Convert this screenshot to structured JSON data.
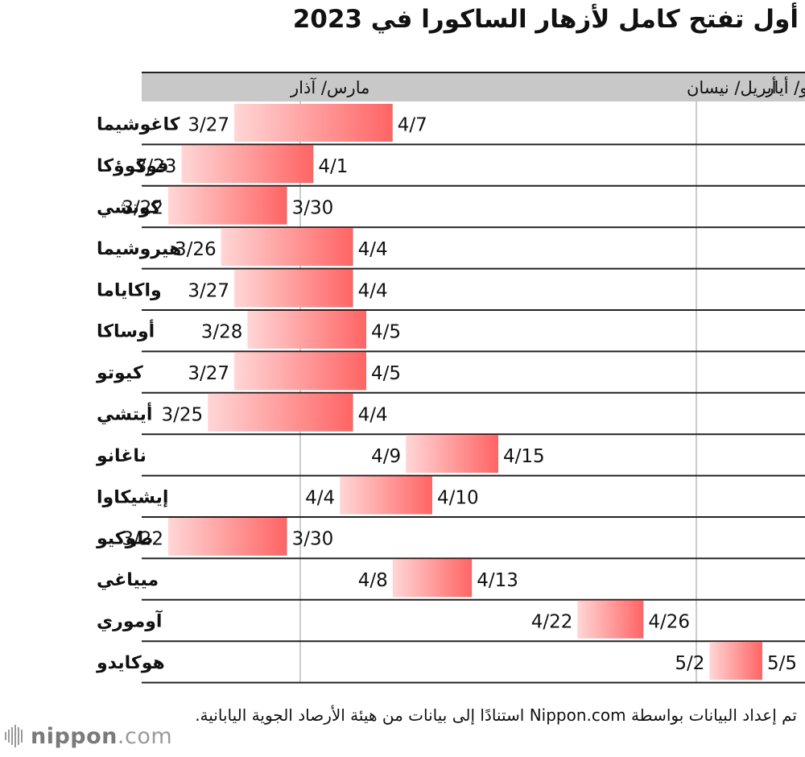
{
  "title": "أول تفتح كامل لأزهار الساكورا في 2023",
  "note": "تم إعداد البيانات بواسطة Nippon.com استنادًا إلى بيانات من هيئة الأرصاد الجوية اليابانية.",
  "logo": {
    "bold": "nippon",
    "dot": ".",
    "rest": "com"
  },
  "colors": {
    "bar_start": "#ffd6d6",
    "bar_end": "#ff6464",
    "header_bg": "#c8c8c8",
    "grid": "#222222",
    "month_line": "#999999"
  },
  "chart_data": {
    "type": "bar",
    "subtype": "floating-range",
    "x_axis": {
      "unit": "date",
      "range": [
        "3/20",
        "5/6"
      ],
      "months": [
        {
          "label": "مارس/ آذار",
          "start": "3/20",
          "end": "3/31"
        },
        {
          "label": "أبريل/ نيسان",
          "start": "4/1",
          "end": "4/30"
        },
        {
          "label": "مايو/ أيار",
          "start": "5/1",
          "end": "5/6"
        }
      ]
    },
    "categories": [
      "كاغوشيما",
      "فوكوؤكا",
      "كوتشي",
      "هيروشيما",
      "واكاياما",
      "أوساكا",
      "كيوتو",
      "أيتشي",
      "ناغانو",
      "إيشيكاوا",
      "طوكيو",
      "ميياغي",
      "آوموري",
      "هوكايدو"
    ],
    "series": [
      {
        "start": [
          "3/27",
          "3/23",
          "3/22",
          "3/26",
          "3/27",
          "3/28",
          "3/27",
          "3/25",
          "4/9",
          "4/4",
          "3/22",
          "4/8",
          "4/22",
          "5/2"
        ],
        "end": [
          "4/7",
          "4/1",
          "3/30",
          "4/4",
          "4/4",
          "4/5",
          "4/5",
          "4/4",
          "4/15",
          "4/10",
          "3/30",
          "4/13",
          "4/26",
          "5/5"
        ]
      }
    ]
  }
}
